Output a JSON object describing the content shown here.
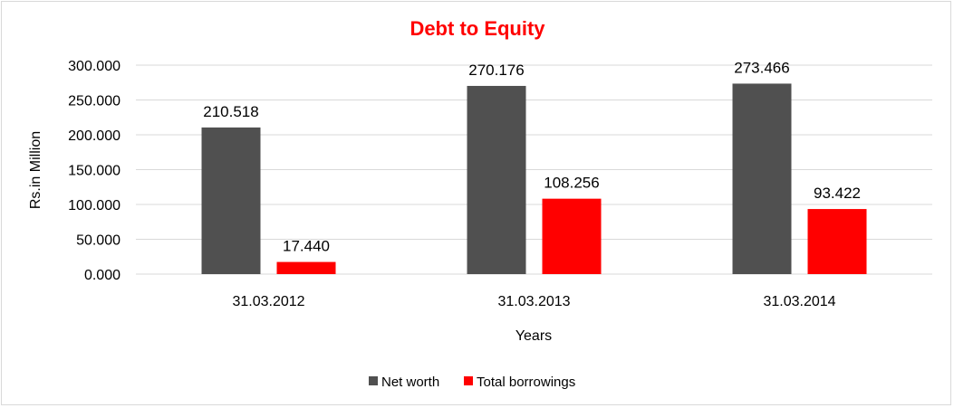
{
  "chart_data": {
    "type": "bar",
    "title": "Debt to Equity",
    "xlabel": "Years",
    "ylabel": "Rs.in Million",
    "categories": [
      "31.03.2012",
      "31.03.2013",
      "31.03.2014"
    ],
    "series": [
      {
        "name": "Net worth",
        "values": [
          210.518,
          270.176,
          273.466
        ],
        "labels": [
          "210.518",
          "270.176",
          "273.466"
        ],
        "color": "#505050"
      },
      {
        "name": "Total borrowings",
        "values": [
          17.44,
          108.256,
          93.422
        ],
        "labels": [
          "17.440",
          "108.256",
          "93.422"
        ],
        "color": "#ff0000"
      }
    ],
    "ylim": [
      0,
      300
    ],
    "yticks": [
      "0.000",
      "50.000",
      "100.000",
      "150.000",
      "200.000",
      "250.000",
      "300.000"
    ],
    "grid": true,
    "legend_position": "bottom"
  }
}
